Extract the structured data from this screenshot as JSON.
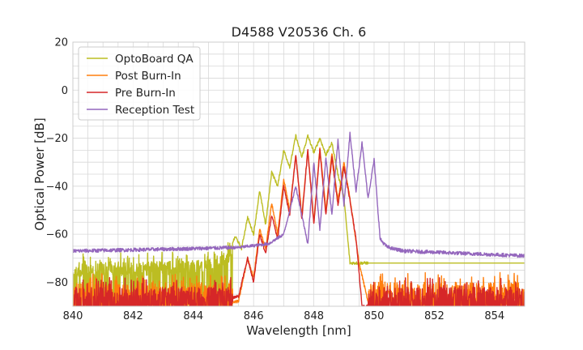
{
  "chart_data": {
    "type": "line",
    "title": "D4588 V20536 Ch. 6",
    "xlabel": "Wavelength [nm]",
    "ylabel": "Optical Power [dB]",
    "xlim": [
      840,
      855
    ],
    "ylim": [
      -90,
      20
    ],
    "xticks": [
      "840",
      "842",
      "844",
      "846",
      "848",
      "850",
      "852",
      "854"
    ],
    "yticks": [
      "20",
      "0",
      "−20",
      "−40",
      "−60",
      "−80"
    ],
    "grid": true,
    "legend_position": "top-left",
    "series": [
      {
        "name": "OptoBoard QA",
        "color": "#bcbd22",
        "x": [
          840,
          841,
          842,
          843,
          844,
          844.8,
          845.1,
          845.4,
          845.6,
          845.8,
          846.0,
          846.2,
          846.4,
          846.6,
          846.8,
          847.0,
          847.2,
          847.4,
          847.6,
          847.8,
          848.0,
          848.2,
          848.4,
          848.6,
          848.8,
          849.0,
          849.2,
          849.4,
          849.6,
          849.8,
          850.0,
          852,
          855
        ],
        "y": [
          -72,
          -71,
          -72,
          -71,
          -71,
          -70,
          -68,
          -61,
          -66,
          -53,
          -60,
          -42,
          -56,
          -34,
          -40,
          -25,
          -32,
          -19,
          -28,
          -19,
          -26,
          -20,
          -27,
          -22,
          -35,
          -45,
          -72,
          -72,
          -72,
          -72,
          -72,
          -72,
          -72
        ],
        "noise": {
          "from": 840,
          "to": 845.3,
          "base": -72,
          "depth": 6
        }
      },
      {
        "name": "Post Burn-In",
        "color": "#ff7f0e",
        "x": [
          840,
          844,
          845.5,
          845.8,
          846.0,
          846.2,
          846.4,
          846.6,
          846.8,
          847.0,
          847.2,
          847.4,
          847.6,
          847.8,
          848.0,
          848.2,
          848.4,
          848.6,
          848.8,
          849.0,
          849.2,
          849.5,
          849.8,
          850.0,
          855
        ],
        "y": [
          -90,
          -90,
          -88,
          -70,
          -78,
          -58,
          -66,
          -47,
          -60,
          -37,
          -50,
          -27,
          -52,
          -25,
          -55,
          -24,
          -50,
          -26,
          -46,
          -30,
          -45,
          -72,
          -88,
          -90,
          -90
        ],
        "noise": {
          "from": 840,
          "to": 855,
          "base": -80,
          "depth": 12
        }
      },
      {
        "name": "Pre Burn-In",
        "color": "#d62728",
        "x": [
          840,
          844,
          845.5,
          845.8,
          846.0,
          846.2,
          846.4,
          846.6,
          846.8,
          847.0,
          847.2,
          847.4,
          847.6,
          847.8,
          848.0,
          848.2,
          848.4,
          848.6,
          848.8,
          849.0,
          849.2,
          849.4,
          849.6,
          850.0,
          855
        ],
        "y": [
          -88,
          -88,
          -86,
          -70,
          -80,
          -60,
          -68,
          -52,
          -62,
          -40,
          -52,
          -27,
          -54,
          -25,
          -56,
          -25,
          -52,
          -28,
          -48,
          -32,
          -46,
          -62,
          -90,
          -90,
          -90
        ],
        "noise": {
          "from": 840,
          "to": 855,
          "base": -82,
          "depth": 10
        }
      },
      {
        "name": "Reception Test",
        "color": "#9467bd",
        "x": [
          840,
          842,
          844,
          845.5,
          846.5,
          847.0,
          847.4,
          847.8,
          848.0,
          848.2,
          848.4,
          848.6,
          848.8,
          849.0,
          849.2,
          849.4,
          849.6,
          849.8,
          850.0,
          850.2,
          850.4,
          850.6,
          851,
          853,
          855
        ],
        "y": [
          -67,
          -66.5,
          -66,
          -65.5,
          -64,
          -60,
          -40,
          -64,
          -30,
          -58,
          -28,
          -52,
          -21,
          -48,
          -18,
          -42,
          -22,
          -45,
          -29,
          -62,
          -65,
          -66,
          -67,
          -68,
          -69
        ],
        "noise": {
          "from": 840,
          "to": 855,
          "base": -66,
          "depth": 1.5
        }
      }
    ]
  }
}
